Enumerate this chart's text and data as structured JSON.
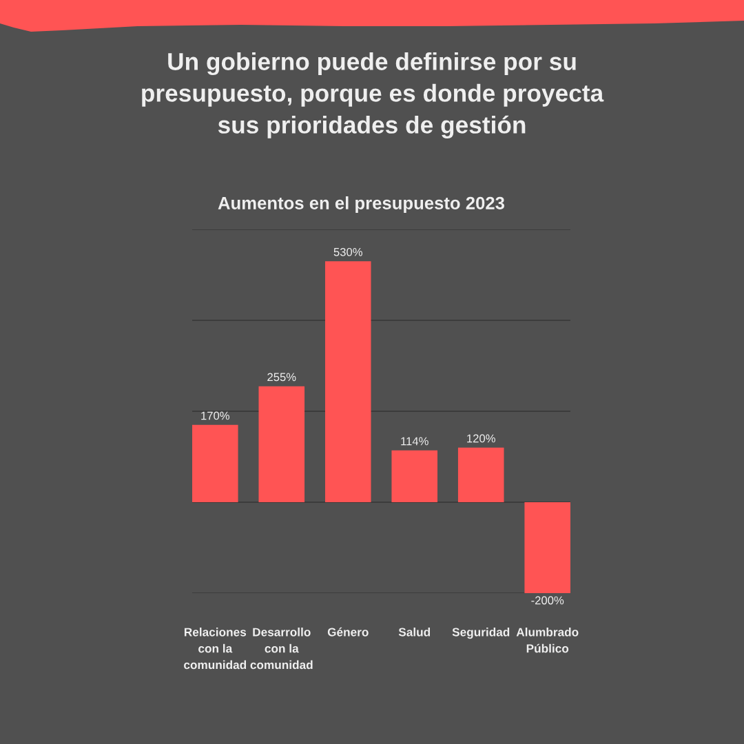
{
  "chart_data": {
    "type": "bar",
    "title": "Un gobierno puede definirse por su\npresupuesto, porque es donde proyecta\nsus prioridades de gestión",
    "subtitle": "Aumentos en el presupuesto 2023",
    "categories": [
      "Relaciones\ncon la\ncomunidad",
      "Desarrollo\ncon la\ncomunidad",
      "Género",
      "Salud",
      "Seguridad",
      "Alumbrado\nPúblico"
    ],
    "values": [
      170,
      255,
      530,
      114,
      120,
      -200
    ],
    "value_labels": [
      "170%",
      "255%",
      "530%",
      "114%",
      "120%",
      "-200%"
    ],
    "color": "#ff5454",
    "ylim": [
      -200,
      600
    ],
    "yticks": [
      {
        "value": -200,
        "label": null
      },
      {
        "value": 0,
        "label": null
      },
      {
        "value": 200,
        "label": null
      },
      {
        "value": 400,
        "label": null
      },
      {
        "value": 600,
        "label": null
      }
    ],
    "grid": "y",
    "tick_labels": "x"
  }
}
